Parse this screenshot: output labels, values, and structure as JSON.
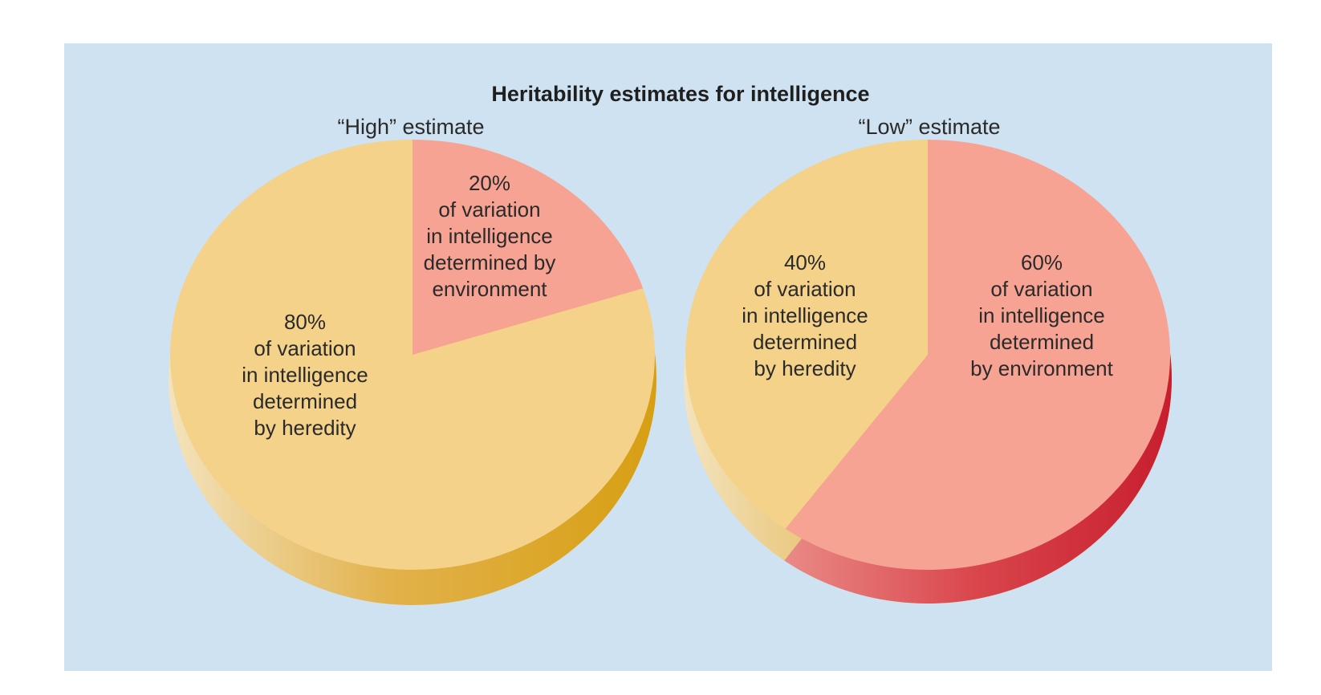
{
  "chart_data": [
    {
      "type": "pie",
      "title": "Heritability estimates for intelligence",
      "subtitle": "“High” estimate",
      "slices": [
        {
          "name": "heredity",
          "value": 80,
          "label_lines": [
            "80%",
            "of variation",
            "in intelligence",
            "determined",
            "by heredity"
          ],
          "color": "#f4d28a"
        },
        {
          "name": "environment",
          "value": 20,
          "label_lines": [
            "20%",
            "of variation",
            "in intelligence",
            "determined by",
            "environment"
          ],
          "color": "#f6a394"
        }
      ]
    },
    {
      "type": "pie",
      "subtitle": "“Low” estimate",
      "slices": [
        {
          "name": "heredity",
          "value": 40,
          "label_lines": [
            "40%",
            "of variation",
            "in intelligence",
            "determined",
            "by heredity"
          ],
          "color": "#f4d28a"
        },
        {
          "name": "environment",
          "value": 60,
          "label_lines": [
            "60%",
            "of variation",
            "in intelligence",
            "determined",
            "by environment"
          ],
          "color": "#f6a394"
        }
      ]
    }
  ],
  "colors": {
    "panel_background": "#cfe2f1",
    "heredity_side": "#e0a82a",
    "environment_side": "#d8343f"
  }
}
